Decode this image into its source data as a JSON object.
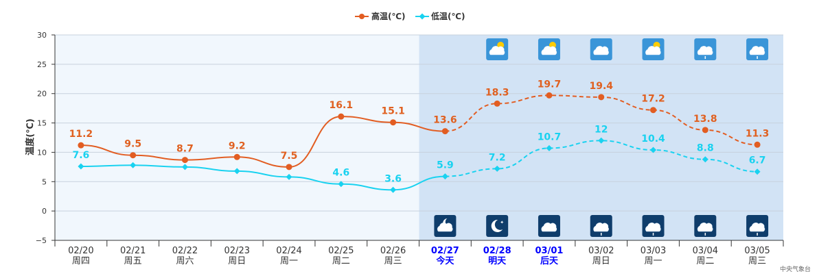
{
  "colors": {
    "high": "#e25d22",
    "low": "#19d2f0",
    "past_bg": "#f1f7fd",
    "forecast_bg": "#d2e3f5",
    "grid": "#c7d1dd",
    "day_icon_bg": "#3a95d8",
    "night_icon_bg": "#0f3d6b",
    "highlight_text": "#0000ff"
  },
  "source": "中央气象台",
  "chart_data": {
    "type": "line",
    "ylabel": "温度(℃)",
    "ylim": [
      -5,
      30
    ],
    "yticks": [
      -5,
      0,
      5,
      10,
      15,
      20,
      25,
      30
    ],
    "grid": true,
    "legend_position": "top-center",
    "categories": [
      {
        "date": "02/20",
        "day": "周四",
        "highlight": false
      },
      {
        "date": "02/21",
        "day": "周五",
        "highlight": false
      },
      {
        "date": "02/22",
        "day": "周六",
        "highlight": false
      },
      {
        "date": "02/23",
        "day": "周日",
        "highlight": false
      },
      {
        "date": "02/24",
        "day": "周一",
        "highlight": false
      },
      {
        "date": "02/25",
        "day": "周二",
        "highlight": false
      },
      {
        "date": "02/26",
        "day": "周三",
        "highlight": false
      },
      {
        "date": "02/27",
        "day": "今天",
        "highlight": true
      },
      {
        "date": "02/28",
        "day": "明天",
        "highlight": true
      },
      {
        "date": "03/01",
        "day": "后天",
        "highlight": true
      },
      {
        "date": "03/02",
        "day": "周日",
        "highlight": false
      },
      {
        "date": "03/03",
        "day": "周一",
        "highlight": false
      },
      {
        "date": "03/04",
        "day": "周二",
        "highlight": false
      },
      {
        "date": "03/05",
        "day": "周三",
        "highlight": false
      }
    ],
    "forecast_start_index": 7,
    "series": [
      {
        "name": "高温(℃)",
        "values": [
          11.2,
          9.5,
          8.7,
          9.2,
          7.5,
          16.1,
          15.1,
          13.6,
          18.3,
          19.7,
          19.4,
          17.2,
          13.8,
          11.3
        ],
        "labels": [
          "11.2",
          "9.5",
          "8.7",
          "9.2",
          "7.5",
          "16.1",
          "15.1",
          "13.6",
          "18.3",
          "19.7",
          "19.4",
          "17.2",
          "13.8",
          "11.3"
        ],
        "marker": "circle"
      },
      {
        "name": "低温(℃)",
        "values": [
          7.6,
          7.8,
          7.5,
          6.8,
          5.8,
          4.6,
          3.6,
          5.9,
          7.2,
          10.7,
          12,
          10.4,
          8.8,
          6.7
        ],
        "labels": [
          "7.6",
          "",
          "",
          "",
          "",
          "4.6",
          "3.6",
          "5.9",
          "7.2",
          "10.7",
          "12",
          "10.4",
          "8.8",
          "6.7"
        ],
        "marker": "diamond"
      }
    ],
    "day_icons": [
      "partly-cloudy-day-icon",
      "partly-cloudy-day-icon",
      "cloudy-icon",
      "partly-cloudy-day-icon",
      "light-rain-icon",
      "light-rain-icon"
    ],
    "night_icons": [
      "partly-cloudy-night-icon",
      "clear-night-icon",
      "cloudy-icon",
      "light-rain-icon",
      "light-rain-icon",
      "light-rain-icon",
      "light-rain-icon"
    ]
  }
}
